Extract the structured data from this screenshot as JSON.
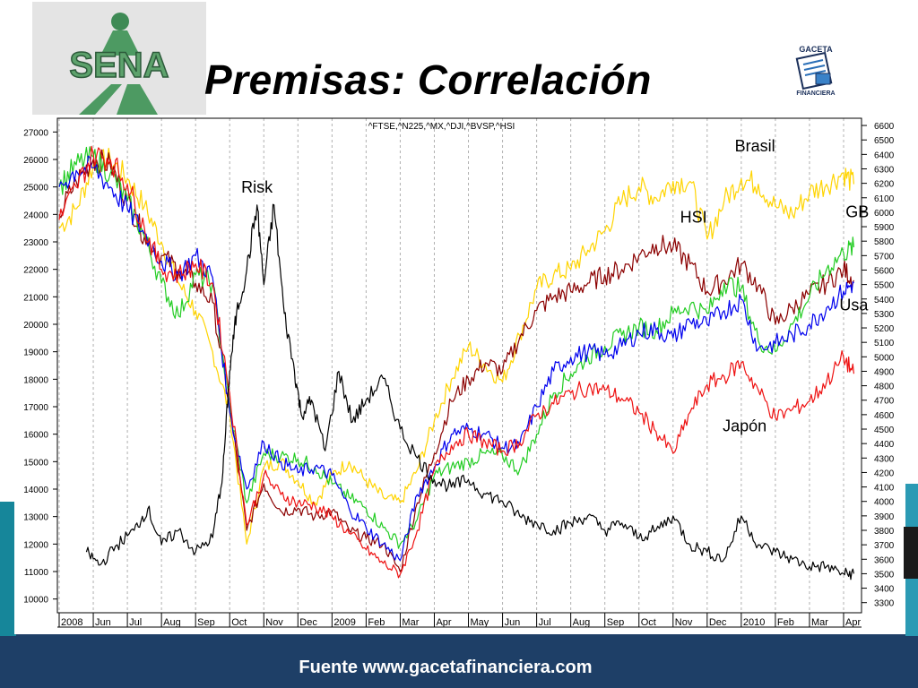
{
  "slide": {
    "title": "Premisas: Correlación",
    "footer": "Fuente www.gacetafinanciera.com",
    "logo_text": "SENA",
    "gaceta_logo_top": "GACETA",
    "gaceta_logo_bottom": "FINANCIERA"
  },
  "colors": {
    "band": "#1e3f67",
    "accent": "#16869a",
    "Brasil": "#ffd400",
    "HSI": "#8b0000",
    "GB": "#22cc22",
    "Usa": "#0000ee",
    "Japón": "#ee1111",
    "Risk": "#000000"
  },
  "chart_data": {
    "type": "line",
    "title": "^FTSE,^N225,^MX,^DJI,^BVSP,^HSI",
    "x_ticks": [
      "2008",
      "Jun",
      "Jul",
      "Aug",
      "Sep",
      "Oct",
      "Nov",
      "Dec",
      "2009",
      "Feb",
      "Mar",
      "Apr",
      "May",
      "Jun",
      "Jul",
      "Aug",
      "Sep",
      "Oct",
      "Nov",
      "Dec",
      "2010",
      "Feb",
      "Mar",
      "Apr"
    ],
    "ylim_left": [
      9500,
      27500
    ],
    "yticks_left": [
      10000,
      11000,
      12000,
      13000,
      14000,
      15000,
      16000,
      17000,
      18000,
      19000,
      20000,
      21000,
      22000,
      23000,
      24000,
      25000,
      26000,
      27000
    ],
    "ylim_right": [
      3230,
      6650
    ],
    "yticks_right": [
      3300,
      3400,
      3500,
      3600,
      3700,
      3800,
      3900,
      4000,
      4100,
      4200,
      4300,
      4400,
      4500,
      4600,
      4700,
      4800,
      4900,
      5000,
      5100,
      5200,
      5300,
      5400,
      5500,
      5600,
      5700,
      5800,
      5900,
      6000,
      6100,
      6200,
      6300,
      6400,
      6500,
      6600
    ],
    "grid": "vertical",
    "annotations": [
      "Risk",
      "Brasil",
      "HSI",
      "GB",
      "Usa",
      "Japón"
    ],
    "series": [
      {
        "name": "Brasil",
        "x": [
          0,
          0.5,
          1,
          1.5,
          2,
          2.5,
          3,
          3.5,
          4,
          4.5,
          5,
          5.5,
          6,
          6.5,
          7,
          7.5,
          8,
          8.5,
          9,
          9.5,
          10,
          10.5,
          11,
          11.5,
          12,
          12.5,
          13,
          13.5,
          14,
          14.5,
          15,
          15.5,
          16,
          16.5,
          17,
          17.5,
          18,
          18.5,
          19,
          19.5,
          20,
          20.5,
          21,
          21.5,
          22,
          22.5,
          23,
          23.3
        ],
        "y": [
          23500,
          24200,
          25800,
          26000,
          25300,
          24300,
          23000,
          21500,
          20500,
          19000,
          16800,
          12000,
          14800,
          15000,
          14300,
          13500,
          14500,
          15000,
          14300,
          13700,
          13500,
          14700,
          16500,
          18000,
          19200,
          18500,
          17900,
          19600,
          21300,
          21800,
          22000,
          22700,
          23400,
          24500,
          25000,
          24600,
          25200,
          25200,
          23100,
          24500,
          25300,
          25100,
          24300,
          24000,
          24800,
          25100,
          25500,
          25100
        ]
      },
      {
        "name": "HSI",
        "x": [
          0,
          0.5,
          1,
          1.5,
          2,
          2.5,
          3,
          3.5,
          4,
          4.5,
          5,
          5.5,
          6,
          6.5,
          7,
          7.5,
          8,
          8.5,
          9,
          9.5,
          10,
          10.5,
          11,
          11.5,
          12,
          12.5,
          13,
          13.5,
          14,
          14.5,
          15,
          15.5,
          16,
          16.5,
          17,
          17.5,
          18,
          18.5,
          19,
          19.5,
          20,
          20.5,
          21,
          21.5,
          22,
          22.5,
          23,
          23.3
        ],
        "y": [
          24000,
          25200,
          26000,
          25800,
          24500,
          23200,
          22500,
          22000,
          21500,
          20800,
          17000,
          12500,
          14200,
          13200,
          13300,
          13000,
          13200,
          12500,
          12200,
          12000,
          11000,
          13500,
          15300,
          17200,
          18000,
          18600,
          18300,
          19500,
          20500,
          21000,
          21200,
          21500,
          21800,
          22000,
          22500,
          22900,
          22800,
          22200,
          21200,
          21600,
          22200,
          21400,
          20000,
          20600,
          21100,
          21500,
          22000,
          21600
        ]
      },
      {
        "name": "GB",
        "x": [
          0,
          0.5,
          1,
          1.5,
          2,
          2.5,
          3,
          3.5,
          4,
          4.5,
          5,
          5.5,
          6,
          6.5,
          7,
          7.5,
          8,
          8.5,
          9,
          9.5,
          10,
          10.5,
          11,
          11.5,
          12,
          12.5,
          13,
          13.5,
          14,
          14.5,
          15,
          15.5,
          16,
          16.5,
          17,
          17.5,
          18,
          18.5,
          19,
          19.5,
          20,
          20.5,
          21,
          21.5,
          22,
          22.5,
          23,
          23.3
        ],
        "y": [
          25000,
          25800,
          26100,
          25500,
          24500,
          23200,
          21500,
          20300,
          21800,
          21500,
          17000,
          13500,
          15300,
          15200,
          15100,
          14800,
          14200,
          13700,
          13300,
          12600,
          12000,
          12900,
          14500,
          14800,
          15000,
          15300,
          15200,
          14700,
          16000,
          17500,
          18200,
          18800,
          19200,
          19600,
          19900,
          19800,
          20400,
          20700,
          20400,
          21500,
          21300,
          19400,
          19000,
          20000,
          21000,
          22000,
          22600,
          22800
        ]
      },
      {
        "name": "Usa",
        "x": [
          0,
          0.5,
          1,
          1.5,
          2,
          2.5,
          3,
          3.5,
          4,
          4.5,
          5,
          5.5,
          6,
          6.5,
          7,
          7.5,
          8,
          8.5,
          9,
          9.5,
          10,
          10.5,
          11,
          11.5,
          12,
          12.5,
          13,
          13.5,
          14,
          14.5,
          15,
          15.5,
          16,
          16.5,
          17,
          17.5,
          18,
          18.5,
          19,
          19.5,
          20,
          20.5,
          21,
          21.5,
          22,
          22.5,
          23,
          23.3
        ],
        "y": [
          25000,
          25600,
          25700,
          25000,
          24200,
          23300,
          22300,
          21800,
          22500,
          21700,
          16800,
          14000,
          15700,
          15000,
          14600,
          14800,
          14500,
          13300,
          12600,
          12000,
          11400,
          13800,
          14800,
          16000,
          16200,
          16000,
          15500,
          15600,
          17000,
          18300,
          18800,
          19000,
          18900,
          19200,
          19700,
          19800,
          19500,
          20100,
          20000,
          20500,
          20900,
          19100,
          19300,
          19600,
          20000,
          20600,
          21200,
          21500
        ]
      },
      {
        "name": "Japón",
        "x": [
          0,
          0.5,
          1,
          1.5,
          2,
          2.5,
          3,
          3.5,
          4,
          4.5,
          5,
          5.5,
          6,
          6.5,
          7,
          7.5,
          8,
          8.5,
          9,
          9.5,
          10,
          10.5,
          11,
          11.5,
          12,
          12.5,
          13,
          13.5,
          14,
          14.5,
          15,
          15.5,
          16,
          16.5,
          17,
          17.5,
          18,
          18.5,
          19,
          19.5,
          20,
          20.5,
          21,
          21.5,
          22,
          22.5,
          23,
          23.3
        ],
        "y": [
          23800,
          25000,
          26200,
          26000,
          25100,
          23500,
          22000,
          21800,
          22200,
          21500,
          17500,
          12700,
          14500,
          13800,
          13500,
          13400,
          13000,
          12400,
          11800,
          11300,
          10900,
          12500,
          14700,
          15600,
          16000,
          15700,
          15400,
          15700,
          16700,
          17100,
          17500,
          17700,
          17600,
          17300,
          16800,
          16100,
          15300,
          16800,
          17800,
          18100,
          18600,
          17600,
          16600,
          16900,
          17200,
          17900,
          18800,
          18200
        ]
      },
      {
        "name": "Risk",
        "x": [
          0.8,
          1.2,
          1.7,
          2.2,
          2.6,
          3,
          3.5,
          4,
          4.5,
          4.8,
          5,
          5.2,
          5.5,
          5.8,
          6,
          6.3,
          6.6,
          6.9,
          7.1,
          7.4,
          7.8,
          8.2,
          8.6,
          9,
          9.5,
          10,
          10.5,
          11,
          11.5,
          12,
          12.5,
          13,
          13.5,
          14,
          14.5,
          15,
          15.5,
          16,
          16.5,
          17,
          17.5,
          18,
          18.5,
          19,
          19.5,
          20,
          20.5,
          21,
          21.5,
          22,
          22.5,
          23,
          23.3
        ],
        "y": [
          3650,
          3560,
          3700,
          3800,
          3950,
          3700,
          3800,
          3650,
          3750,
          4200,
          4900,
          5300,
          5600,
          6050,
          5500,
          6050,
          5300,
          4900,
          4600,
          4700,
          4350,
          4900,
          4550,
          4700,
          4850,
          4500,
          4300,
          4150,
          4100,
          4150,
          4050,
          4000,
          3900,
          3850,
          3800,
          3850,
          3900,
          3800,
          3850,
          3750,
          3800,
          3900,
          3700,
          3650,
          3600,
          3900,
          3700,
          3650,
          3600,
          3550,
          3550,
          3500,
          3500
        ]
      }
    ]
  }
}
